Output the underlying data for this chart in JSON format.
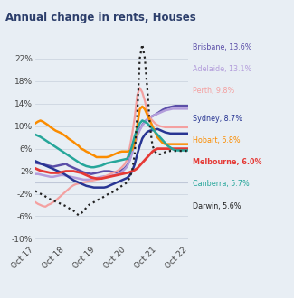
{
  "title": "Annual change in rents, Houses",
  "background_color": "#e8eef4",
  "xlim": [
    0,
    60
  ],
  "ylim": [
    -11,
    25
  ],
  "yticks": [
    -10,
    -6,
    -2,
    2,
    6,
    10,
    14,
    18,
    22
  ],
  "xtick_labels": [
    "Oct 17",
    "Oct 18",
    "Oct 19",
    "Oct 20",
    "Oct 21",
    "Oct 22"
  ],
  "xtick_positions": [
    0,
    12,
    24,
    36,
    48,
    60
  ],
  "legend": [
    {
      "label": "Brisbane, 13.6%",
      "color": "#5b4ea8"
    },
    {
      "label": "Adelaide, 13.1%",
      "color": "#b39ddb"
    },
    {
      "label": "Perth, 9.8%",
      "color": "#f4a0a0"
    },
    {
      "label": "Sydney, 8.7%",
      "color": "#283593"
    },
    {
      "label": "Hobart, 6.8%",
      "color": "#fb8c00"
    },
    {
      "label": "Melbourne, 6.0%",
      "color": "#e53935"
    },
    {
      "label": "Canberra, 5.7%",
      "color": "#26a69a"
    },
    {
      "label": "Darwin, 5.6%",
      "color": "#212121"
    }
  ],
  "series": {
    "Brisbane": {
      "color": "#5b4ea8",
      "linestyle": "solid",
      "linewidth": 1.8,
      "x": [
        0,
        1,
        2,
        3,
        4,
        5,
        6,
        7,
        8,
        9,
        10,
        11,
        12,
        13,
        14,
        15,
        16,
        17,
        18,
        19,
        20,
        21,
        22,
        23,
        24,
        25,
        26,
        27,
        28,
        29,
        30,
        31,
        32,
        33,
        34,
        35,
        36,
        37,
        38,
        39,
        40,
        41,
        42,
        43,
        44,
        45,
        46,
        47,
        48,
        49,
        50,
        51,
        52,
        53,
        54,
        55,
        56,
        57,
        58,
        59,
        60
      ],
      "y": [
        3.5,
        3.4,
        3.3,
        3.2,
        3.1,
        3.0,
        2.9,
        2.8,
        2.9,
        3.0,
        3.1,
        3.2,
        3.3,
        3.0,
        2.8,
        2.6,
        2.4,
        2.2,
        2.0,
        1.8,
        1.7,
        1.6,
        1.5,
        1.6,
        1.7,
        1.8,
        1.9,
        2.0,
        2.0,
        2.0,
        1.9,
        1.8,
        1.8,
        2.0,
        2.2,
        2.5,
        3.0,
        4.0,
        5.5,
        7.0,
        8.5,
        9.5,
        10.2,
        10.8,
        11.2,
        11.5,
        11.8,
        12.0,
        12.3,
        12.6,
        12.9,
        13.1,
        13.3,
        13.4,
        13.5,
        13.6,
        13.6,
        13.6,
        13.6,
        13.6,
        13.6
      ]
    },
    "Adelaide": {
      "color": "#b39ddb",
      "linestyle": "solid",
      "linewidth": 1.8,
      "x": [
        0,
        1,
        2,
        3,
        4,
        5,
        6,
        7,
        8,
        9,
        10,
        11,
        12,
        13,
        14,
        15,
        16,
        17,
        18,
        19,
        20,
        21,
        22,
        23,
        24,
        25,
        26,
        27,
        28,
        29,
        30,
        31,
        32,
        33,
        34,
        35,
        36,
        37,
        38,
        39,
        40,
        41,
        42,
        43,
        44,
        45,
        46,
        47,
        48,
        49,
        50,
        51,
        52,
        53,
        54,
        55,
        56,
        57,
        58,
        59,
        60
      ],
      "y": [
        1.5,
        1.5,
        1.4,
        1.3,
        1.2,
        1.1,
        1.0,
        1.0,
        1.1,
        1.2,
        1.3,
        1.3,
        1.2,
        1.1,
        1.0,
        0.9,
        0.8,
        0.7,
        0.6,
        0.5,
        0.5,
        0.5,
        0.6,
        0.7,
        0.8,
        0.9,
        1.0,
        1.1,
        1.1,
        1.2,
        1.2,
        1.3,
        1.4,
        1.6,
        1.9,
        2.3,
        2.8,
        3.8,
        5.2,
        6.8,
        8.2,
        9.3,
        10.1,
        10.7,
        11.2,
        11.5,
        11.8,
        12.0,
        12.2,
        12.4,
        12.6,
        12.8,
        12.9,
        13.0,
        13.1,
        13.1,
        13.1,
        13.1,
        13.1,
        13.1,
        13.1
      ]
    },
    "Perth": {
      "color": "#f4a0a0",
      "linestyle": "solid",
      "linewidth": 1.6,
      "x": [
        0,
        1,
        2,
        3,
        4,
        5,
        6,
        7,
        8,
        9,
        10,
        11,
        12,
        13,
        14,
        15,
        16,
        17,
        18,
        19,
        20,
        21,
        22,
        23,
        24,
        25,
        26,
        27,
        28,
        29,
        30,
        31,
        32,
        33,
        34,
        35,
        36,
        37,
        38,
        39,
        40,
        41,
        42,
        43,
        44,
        45,
        46,
        47,
        48,
        49,
        50,
        51,
        52,
        53,
        54,
        55,
        56,
        57,
        58,
        59,
        60
      ],
      "y": [
        -3.5,
        -3.8,
        -4.0,
        -4.2,
        -4.3,
        -4.0,
        -3.8,
        -3.5,
        -3.2,
        -2.8,
        -2.4,
        -2.0,
        -1.6,
        -1.2,
        -0.8,
        -0.5,
        -0.3,
        -0.2,
        -0.1,
        0.0,
        0.1,
        0.2,
        0.3,
        0.4,
        0.5,
        0.6,
        0.8,
        1.0,
        1.2,
        1.4,
        1.6,
        1.8,
        2.0,
        2.3,
        2.7,
        3.2,
        4.0,
        6.0,
        8.5,
        11.5,
        15.5,
        16.8,
        16.0,
        14.5,
        12.5,
        11.5,
        11.0,
        10.5,
        10.2,
        10.0,
        9.9,
        9.8,
        9.8,
        9.8,
        9.8,
        9.8,
        9.8,
        9.8,
        9.8,
        9.8,
        9.8
      ]
    },
    "Sydney": {
      "color": "#283593",
      "linestyle": "solid",
      "linewidth": 1.8,
      "x": [
        0,
        1,
        2,
        3,
        4,
        5,
        6,
        7,
        8,
        9,
        10,
        11,
        12,
        13,
        14,
        15,
        16,
        17,
        18,
        19,
        20,
        21,
        22,
        23,
        24,
        25,
        26,
        27,
        28,
        29,
        30,
        31,
        32,
        33,
        34,
        35,
        36,
        37,
        38,
        39,
        40,
        41,
        42,
        43,
        44,
        45,
        46,
        47,
        48,
        49,
        50,
        51,
        52,
        53,
        54,
        55,
        56,
        57,
        58,
        59,
        60
      ],
      "y": [
        3.8,
        3.6,
        3.4,
        3.2,
        3.0,
        2.8,
        2.6,
        2.4,
        2.2,
        2.0,
        1.8,
        1.6,
        1.3,
        1.0,
        0.7,
        0.4,
        0.2,
        0.0,
        -0.2,
        -0.4,
        -0.6,
        -0.7,
        -0.8,
        -0.9,
        -0.9,
        -0.9,
        -0.9,
        -0.9,
        -0.8,
        -0.6,
        -0.4,
        -0.2,
        0.0,
        0.2,
        0.4,
        0.6,
        0.8,
        1.2,
        2.0,
        3.2,
        5.0,
        6.5,
        7.8,
        8.5,
        9.0,
        9.2,
        9.3,
        9.4,
        9.5,
        9.3,
        9.1,
        8.9,
        8.8,
        8.7,
        8.7,
        8.7,
        8.7,
        8.7,
        8.7,
        8.7,
        8.7
      ]
    },
    "Hobart": {
      "color": "#fb8c00",
      "linestyle": "solid",
      "linewidth": 1.8,
      "x": [
        0,
        1,
        2,
        3,
        4,
        5,
        6,
        7,
        8,
        9,
        10,
        11,
        12,
        13,
        14,
        15,
        16,
        17,
        18,
        19,
        20,
        21,
        22,
        23,
        24,
        25,
        26,
        27,
        28,
        29,
        30,
        31,
        32,
        33,
        34,
        35,
        36,
        37,
        38,
        39,
        40,
        41,
        42,
        43,
        44,
        45,
        46,
        47,
        48,
        49,
        50,
        51,
        52,
        53,
        54,
        55,
        56,
        57,
        58,
        59,
        60
      ],
      "y": [
        10.5,
        10.8,
        11.0,
        10.8,
        10.5,
        10.2,
        9.8,
        9.5,
        9.2,
        9.0,
        8.8,
        8.5,
        8.2,
        7.8,
        7.5,
        7.2,
        6.8,
        6.5,
        6.0,
        5.8,
        5.5,
        5.3,
        5.0,
        4.8,
        4.5,
        4.5,
        4.5,
        4.5,
        4.5,
        4.6,
        4.8,
        5.0,
        5.2,
        5.4,
        5.5,
        5.5,
        5.5,
        5.6,
        5.8,
        7.0,
        10.0,
        13.0,
        13.5,
        13.0,
        12.0,
        11.0,
        10.0,
        9.0,
        8.0,
        7.5,
        7.0,
        6.8,
        6.8,
        6.8,
        6.8,
        6.8,
        6.8,
        6.8,
        6.8,
        6.8,
        6.8
      ]
    },
    "Melbourne": {
      "color": "#e53935",
      "linestyle": "solid",
      "linewidth": 2.0,
      "x": [
        0,
        1,
        2,
        3,
        4,
        5,
        6,
        7,
        8,
        9,
        10,
        11,
        12,
        13,
        14,
        15,
        16,
        17,
        18,
        19,
        20,
        21,
        22,
        23,
        24,
        25,
        26,
        27,
        28,
        29,
        30,
        31,
        32,
        33,
        34,
        35,
        36,
        37,
        38,
        39,
        40,
        41,
        42,
        43,
        44,
        45,
        46,
        47,
        48,
        49,
        50,
        51,
        52,
        53,
        54,
        55,
        56,
        57,
        58,
        59,
        60
      ],
      "y": [
        2.5,
        2.3,
        2.1,
        2.0,
        1.9,
        1.8,
        1.7,
        1.7,
        1.7,
        1.7,
        1.8,
        1.9,
        2.0,
        2.0,
        2.0,
        2.0,
        1.9,
        1.8,
        1.7,
        1.5,
        1.3,
        1.1,
        0.9,
        0.8,
        0.7,
        0.7,
        0.7,
        0.8,
        0.9,
        1.0,
        1.1,
        1.2,
        1.3,
        1.4,
        1.5,
        1.6,
        1.7,
        1.8,
        2.0,
        2.2,
        2.5,
        3.0,
        3.5,
        4.0,
        4.5,
        5.0,
        5.5,
        5.8,
        6.0,
        6.0,
        6.0,
        6.0,
        6.0,
        6.0,
        6.0,
        6.0,
        6.0,
        6.0,
        6.0,
        6.0,
        6.0
      ]
    },
    "Canberra": {
      "color": "#26a69a",
      "linestyle": "solid",
      "linewidth": 1.8,
      "x": [
        0,
        1,
        2,
        3,
        4,
        5,
        6,
        7,
        8,
        9,
        10,
        11,
        12,
        13,
        14,
        15,
        16,
        17,
        18,
        19,
        20,
        21,
        22,
        23,
        24,
        25,
        26,
        27,
        28,
        29,
        30,
        31,
        32,
        33,
        34,
        35,
        36,
        37,
        38,
        39,
        40,
        41,
        42,
        43,
        44,
        45,
        46,
        47,
        48,
        49,
        50,
        51,
        52,
        53,
        54,
        55,
        56,
        57,
        58,
        59,
        60
      ],
      "y": [
        8.5,
        8.3,
        8.1,
        7.8,
        7.5,
        7.2,
        6.9,
        6.6,
        6.3,
        6.0,
        5.7,
        5.4,
        5.1,
        4.8,
        4.5,
        4.2,
        3.9,
        3.6,
        3.3,
        3.1,
        2.9,
        2.8,
        2.7,
        2.7,
        2.8,
        2.9,
        3.0,
        3.2,
        3.4,
        3.5,
        3.6,
        3.7,
        3.8,
        3.9,
        4.0,
        4.1,
        4.2,
        5.0,
        6.5,
        8.2,
        9.5,
        10.5,
        11.0,
        10.8,
        10.5,
        10.0,
        9.5,
        9.0,
        8.5,
        8.0,
        7.5,
        7.0,
        6.5,
        6.2,
        5.9,
        5.7,
        5.7,
        5.7,
        5.7,
        5.7,
        5.7
      ]
    },
    "Darwin": {
      "color": "#212121",
      "linestyle": "dotted",
      "linewidth": 1.6,
      "x": [
        0,
        1,
        2,
        3,
        4,
        5,
        6,
        7,
        8,
        9,
        10,
        11,
        12,
        13,
        14,
        15,
        16,
        17,
        18,
        19,
        20,
        21,
        22,
        23,
        24,
        25,
        26,
        27,
        28,
        29,
        30,
        31,
        32,
        33,
        34,
        35,
        36,
        37,
        38,
        39,
        40,
        41,
        42,
        43,
        44,
        45,
        46,
        47,
        48,
        49,
        50,
        51,
        52,
        53,
        54,
        55,
        56,
        57,
        58,
        59,
        60
      ],
      "y": [
        -1.5,
        -1.8,
        -2.0,
        -2.2,
        -2.5,
        -2.8,
        -3.0,
        -3.2,
        -3.4,
        -3.6,
        -3.8,
        -4.0,
        -4.2,
        -4.5,
        -4.8,
        -5.0,
        -5.5,
        -5.8,
        -5.5,
        -5.0,
        -4.5,
        -4.0,
        -3.8,
        -3.5,
        -3.2,
        -3.0,
        -2.8,
        -2.5,
        -2.2,
        -2.0,
        -1.8,
        -1.5,
        -1.2,
        -0.9,
        -0.6,
        -0.3,
        0.0,
        0.8,
        2.0,
        5.0,
        12.0,
        22.0,
        24.5,
        22.0,
        16.5,
        10.0,
        6.5,
        5.5,
        5.0,
        5.0,
        5.2,
        5.4,
        5.5,
        5.6,
        5.6,
        5.6,
        5.6,
        5.6,
        5.6,
        5.6,
        5.6
      ]
    }
  }
}
